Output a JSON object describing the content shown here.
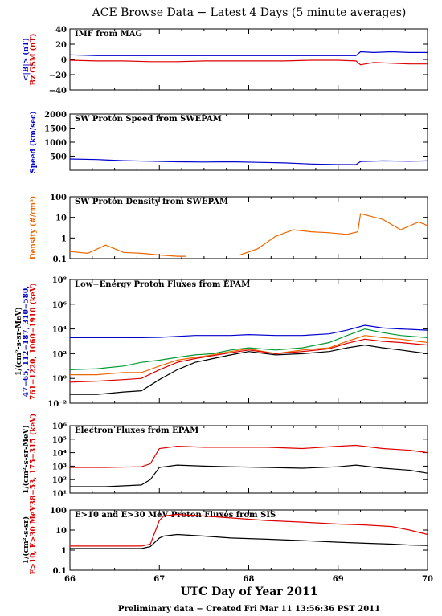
{
  "page_title": "ACE Browse Data − Latest 4 Days (5 minute averages)",
  "xlabel": "UTC Day of Year 2011",
  "footer": "Preliminary data − Created Fri Mar 11 13:56:36 PST 2011",
  "colors": {
    "blue": "#0000cc",
    "red": "#dd0000",
    "orange": "#ee6600",
    "green": "#009933",
    "black": "#000000"
  },
  "chart_data": [
    {
      "type": "line",
      "id": "imf",
      "title": "IMF from MAG",
      "yscale": "linear",
      "ylim": [
        -40,
        40
      ],
      "yticks": [
        -40,
        -20,
        0,
        20,
        40
      ],
      "ytick_labels": [
        "−40",
        "−20",
        "0",
        "20",
        "40"
      ],
      "ylabel_lines": [
        {
          "text": "<|B|> (nT)",
          "color": "#0000cc"
        },
        {
          "text": "Bz GSM (nT)",
          "color": "#dd0000"
        }
      ],
      "x": [
        66,
        66.3,
        66.6,
        66.9,
        67.2,
        67.5,
        67.8,
        68.1,
        68.4,
        68.7,
        69.0,
        69.2,
        69.25,
        69.4,
        69.6,
        69.8,
        70
      ],
      "series": [
        {
          "color": "#0000cc",
          "values": [
            6,
            5,
            5,
            5,
            5,
            5,
            5,
            5,
            5,
            5,
            5,
            5,
            10,
            9,
            10,
            9,
            9
          ]
        },
        {
          "color": "#dd0000",
          "values": [
            -1,
            -2,
            -2,
            -3,
            -3,
            -2,
            -2,
            -2,
            -2,
            -1,
            -1,
            -2,
            -7,
            -4,
            -5,
            -6,
            -6
          ]
        }
      ]
    },
    {
      "type": "line",
      "id": "speed",
      "title": "SW Proton Speed from SWEPAM",
      "yscale": "linear",
      "ylim": [
        0,
        2000
      ],
      "yticks": [
        500,
        1000,
        1500,
        2000
      ],
      "ytick_labels": [
        "500",
        "1000",
        "1500",
        "2000"
      ],
      "ylabel_lines": [
        {
          "text": "Speed (km/sec)",
          "color": "#0000cc"
        }
      ],
      "x": [
        66,
        66.3,
        66.6,
        66.9,
        67.2,
        67.5,
        67.8,
        68.1,
        68.4,
        68.7,
        69.0,
        69.2,
        69.25,
        69.5,
        69.8,
        70
      ],
      "series": [
        {
          "color": "#0000cc",
          "values": [
            400,
            380,
            340,
            320,
            300,
            290,
            300,
            280,
            260,
            220,
            200,
            200,
            310,
            330,
            320,
            330
          ]
        }
      ]
    },
    {
      "type": "line",
      "id": "density",
      "title": "SW Proton Density from SWEPAM",
      "yscale": "log",
      "ylim": [
        0.1,
        100
      ],
      "yticks": [
        0.1,
        1,
        10,
        100
      ],
      "ytick_labels": [
        "0.1",
        "1",
        "10",
        "100"
      ],
      "ylabel_lines": [
        {
          "text": "Density (#/cm³)",
          "color": "#ee6600"
        }
      ],
      "series": [
        {
          "color": "#ee6600",
          "segments": [
            {
              "x": [
                66,
                66.2,
                66.4,
                66.6,
                66.8,
                67.0,
                67.2,
                67.3
              ],
              "y": [
                0.22,
                0.18,
                0.45,
                0.2,
                0.18,
                0.15,
                0.13,
                0.13
              ]
            },
            {
              "x": [
                67.9,
                68.1,
                68.3,
                68.5,
                68.7,
                68.9,
                69.1,
                69.22,
                69.25,
                69.5,
                69.7,
                69.9,
                70
              ],
              "y": [
                0.15,
                0.3,
                1.2,
                2.5,
                2.0,
                1.8,
                1.5,
                2.0,
                15,
                8,
                2.5,
                6,
                4
              ]
            }
          ]
        }
      ]
    },
    {
      "type": "line",
      "id": "epam_p",
      "title": "Low−Energy Proton Fluxes from EPAM",
      "yscale": "log",
      "ylim": [
        0.01,
        100000000
      ],
      "yticks": [
        0.01,
        1,
        100,
        10000,
        1000000,
        100000000
      ],
      "ytick_labels": [
        "10⁻²",
        "10⁰",
        "10²",
        "10⁴",
        "10⁶",
        "10⁸"
      ],
      "ylabel_lines": [
        {
          "text": "1/(cm²-s-sr-MeV)",
          "color": "#000000"
        },
        {
          "text": "47−65, 112−187, 310−580,",
          "color": "#0000cc"
        },
        {
          "text": "761−1220, 1060−1910 (keV)",
          "color": "#dd0000"
        }
      ],
      "x": [
        66,
        66.3,
        66.6,
        66.8,
        67.0,
        67.2,
        67.4,
        67.6,
        67.8,
        68.0,
        68.3,
        68.6,
        68.9,
        69.1,
        69.3,
        69.5,
        69.7,
        70
      ],
      "series": [
        {
          "color": "#0000cc",
          "values": [
            2000,
            2000,
            2000,
            2000,
            2100,
            2500,
            3000,
            3000,
            3000,
            3500,
            3000,
            3000,
            4000,
            8000,
            20000,
            12000,
            10000,
            8000
          ]
        },
        {
          "color": "#009933",
          "values": [
            5,
            6,
            10,
            20,
            30,
            50,
            80,
            100,
            200,
            300,
            200,
            300,
            800,
            3000,
            10000,
            5000,
            3000,
            2000
          ]
        },
        {
          "color": "#ee6600",
          "values": [
            2,
            2,
            3,
            3,
            10,
            30,
            50,
            80,
            150,
            250,
            100,
            200,
            300,
            1000,
            3000,
            2000,
            1500,
            800
          ]
        },
        {
          "color": "#dd0000",
          "values": [
            0.5,
            0.6,
            0.8,
            1,
            5,
            20,
            40,
            70,
            120,
            200,
            100,
            150,
            250,
            700,
            1500,
            1000,
            800,
            500
          ]
        },
        {
          "color": "#000000",
          "values": [
            0.05,
            0.05,
            0.08,
            0.1,
            0.8,
            5,
            20,
            40,
            80,
            150,
            80,
            100,
            150,
            300,
            500,
            300,
            200,
            100
          ]
        }
      ]
    },
    {
      "type": "line",
      "id": "epam_e",
      "title": "Electron Fluxes from EPAM",
      "yscale": "log",
      "ylim": [
        10,
        1000000
      ],
      "yticks": [
        10,
        100,
        1000,
        10000,
        100000,
        1000000
      ],
      "ytick_labels": [
        "10¹",
        "10²",
        "10³",
        "10⁴",
        "10⁵",
        "10⁶"
      ],
      "ylabel_lines": [
        {
          "text": "1/(cm²-s-sr-MeV)",
          "color": "#000000"
        },
        {
          "text": "38−53, 175−315 (keV)",
          "color": "#dd0000"
        }
      ],
      "x": [
        66,
        66.4,
        66.8,
        66.9,
        67.0,
        67.2,
        67.5,
        67.8,
        68.2,
        68.6,
        69.0,
        69.2,
        69.5,
        69.8,
        70
      ],
      "series": [
        {
          "color": "#dd0000",
          "values": [
            800,
            800,
            900,
            1500,
            20000,
            30000,
            25000,
            25000,
            25000,
            20000,
            30000,
            35000,
            20000,
            15000,
            10000
          ]
        },
        {
          "color": "#000000",
          "values": [
            30,
            30,
            40,
            100,
            800,
            1200,
            1000,
            900,
            800,
            700,
            900,
            1200,
            700,
            500,
            300
          ]
        }
      ]
    },
    {
      "type": "line",
      "id": "sis",
      "title": "E>10 and E>30 MeV Proton Fluxes from SIS",
      "yscale": "log",
      "ylim": [
        0.1,
        100
      ],
      "yticks": [
        0.1,
        1,
        10,
        100
      ],
      "ytick_labels": [
        "0.1",
        "1",
        "10",
        "100"
      ],
      "ylabel_lines": [
        {
          "text": "1/(cm²-s-sr)",
          "color": "#000000"
        },
        {
          "text": "E>10, E>30 MeV",
          "color": "#dd0000"
        }
      ],
      "x": [
        66,
        66.4,
        66.8,
        66.9,
        67.0,
        67.05,
        67.2,
        67.5,
        67.8,
        68.2,
        68.6,
        69.0,
        69.3,
        69.6,
        69.8,
        70
      ],
      "series": [
        {
          "color": "#dd0000",
          "values": [
            1.6,
            1.6,
            1.6,
            2,
            30,
            50,
            60,
            50,
            40,
            30,
            25,
            20,
            18,
            15,
            10,
            6
          ]
        },
        {
          "color": "#000000",
          "values": [
            1.2,
            1.2,
            1.2,
            1.5,
            4,
            5,
            6,
            5,
            4,
            3.5,
            3,
            2.5,
            2.2,
            2,
            1.8,
            1.7
          ]
        }
      ]
    }
  ],
  "x_axis": {
    "xlim": [
      66,
      70
    ],
    "ticks": [
      66,
      67,
      68,
      69,
      70
    ],
    "tick_labels": [
      "66",
      "67",
      "68",
      "69",
      "70"
    ]
  }
}
